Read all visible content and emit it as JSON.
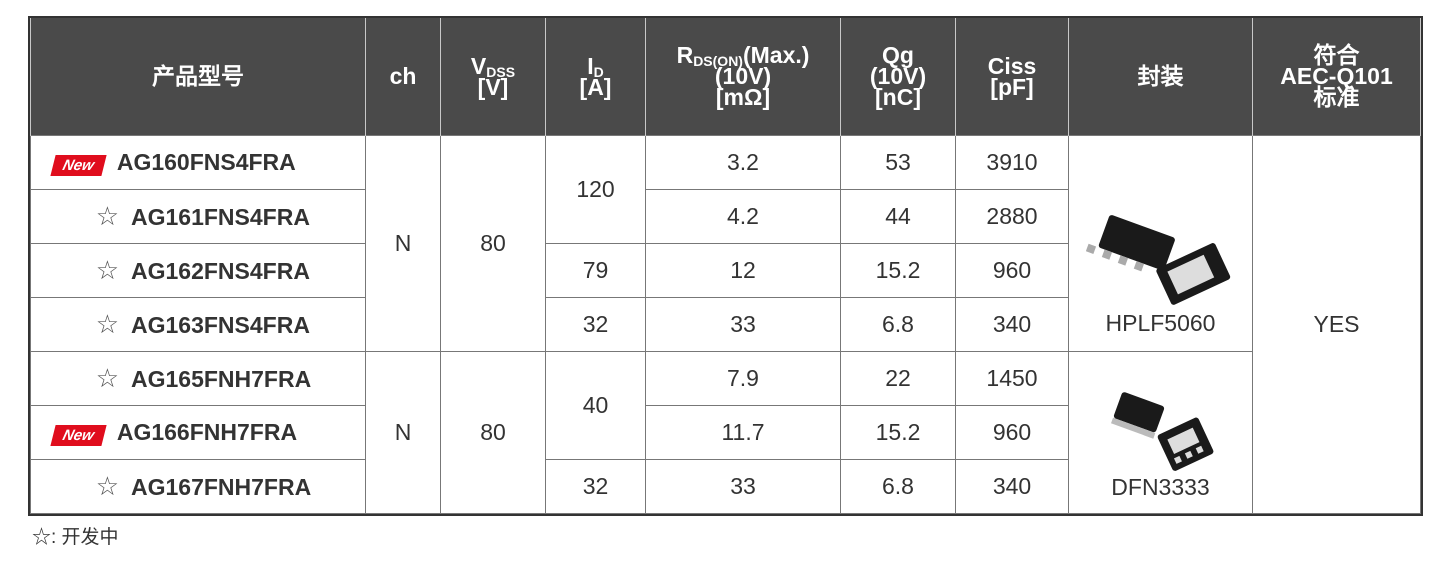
{
  "headers": [
    {
      "label": "产品型号"
    },
    {
      "label": "ch"
    },
    {
      "symbol": "V",
      "subscript": "DSS",
      "unit": "[V]"
    },
    {
      "symbol": "I",
      "subscript": "D",
      "unit": "[A]"
    },
    {
      "symbol": "R",
      "subscript": "DS(ON)",
      "suffix": "(Max.)",
      "condition": "(10V)",
      "unit": "[mΩ]"
    },
    {
      "symbol": "Qg",
      "condition": "(10V)",
      "unit": "[nC]"
    },
    {
      "symbol": "Ciss",
      "unit": "[pF]"
    },
    {
      "label": "封装"
    },
    {
      "lines": [
        "符合",
        "AEC-Q101",
        "标准"
      ]
    }
  ],
  "aec": "YES",
  "groups": [
    {
      "ch": "N",
      "vdss": 80,
      "package": "HPLF5060",
      "id_groups": [
        {
          "id": 120,
          "rows": [
            {
              "mark": "New",
              "product": "AG160FNS4FRA",
              "rds": 3.2,
              "qg": 53,
              "ciss": 3910
            },
            {
              "mark": "☆",
              "product": "AG161FNS4FRA",
              "rds": 4.2,
              "qg": 44,
              "ciss": 2880
            }
          ]
        },
        {
          "id": 79,
          "rows": [
            {
              "mark": "☆",
              "product": "AG162FNS4FRA",
              "rds": 12,
              "qg": 15.2,
              "ciss": 960
            }
          ]
        },
        {
          "id": 32,
          "rows": [
            {
              "mark": "☆",
              "product": "AG163FNS4FRA",
              "rds": 33,
              "qg": 6.8,
              "ciss": 340
            }
          ]
        }
      ]
    },
    {
      "ch": "N",
      "vdss": 80,
      "package": "DFN3333",
      "id_groups": [
        {
          "id": 40,
          "rows": [
            {
              "mark": "☆",
              "product": "AG165FNH7FRA",
              "rds": 7.9,
              "qg": 22,
              "ciss": 1450
            },
            {
              "mark": "New",
              "product": "AG166FNH7FRA",
              "rds": 11.7,
              "qg": 15.2,
              "ciss": 960
            }
          ]
        },
        {
          "id": 32,
          "rows": [
            {
              "mark": "☆",
              "product": "AG167FNH7FRA",
              "rds": 33,
              "qg": 6.8,
              "ciss": 340
            }
          ]
        }
      ]
    }
  ],
  "footnote": "☆: 开发中"
}
